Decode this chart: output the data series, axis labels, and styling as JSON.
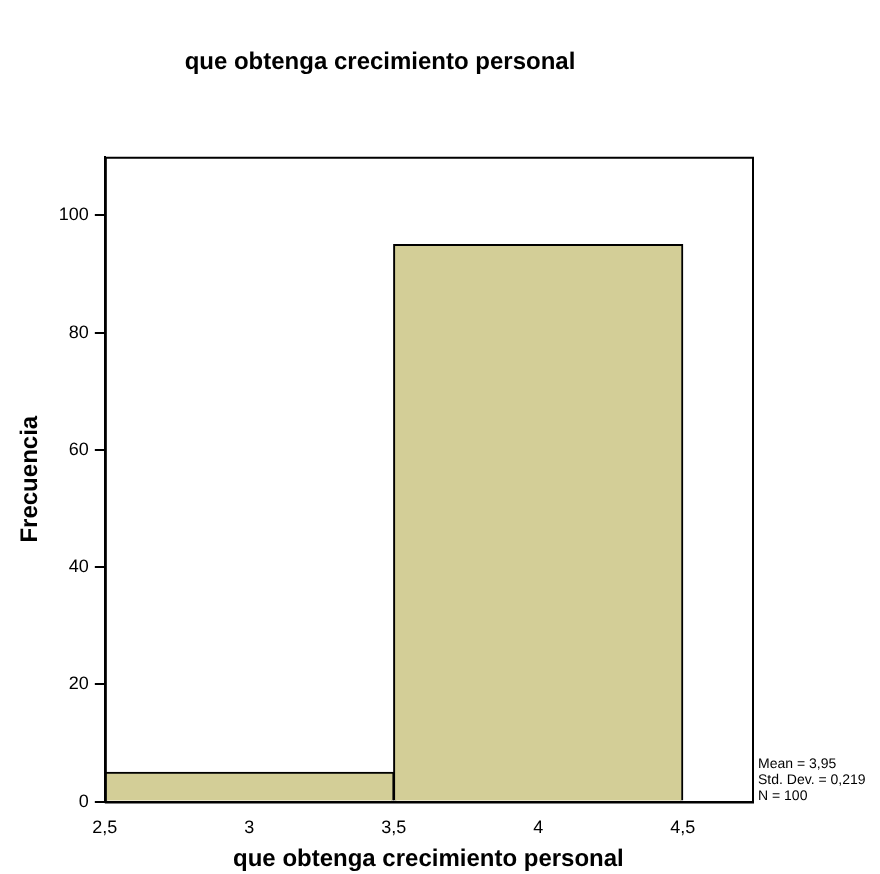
{
  "chart_data": {
    "type": "histogram",
    "title": "que obtenga crecimiento personal",
    "xlabel": "que obtenga crecimiento personal",
    "ylabel": "Frecuencia",
    "bins": [
      2.5,
      3.5,
      4.5
    ],
    "values": [
      5,
      95
    ],
    "color": "#d3ce97",
    "xlim": [
      2.5,
      4.74
    ],
    "xticks": [
      {
        "value": 2.5,
        "label": "2,5"
      },
      3,
      {
        "value": 3.5,
        "label": "3,5"
      },
      4,
      {
        "value": 4.5,
        "label": "4,5"
      }
    ],
    "ylim": [
      0,
      110
    ],
    "yticks": [
      0,
      20,
      40,
      60,
      80,
      100
    ],
    "grid": false,
    "legend": false,
    "annotations": [
      "Mean = 3,95",
      "Std. Dev. = 0,219",
      "N = 100"
    ]
  }
}
